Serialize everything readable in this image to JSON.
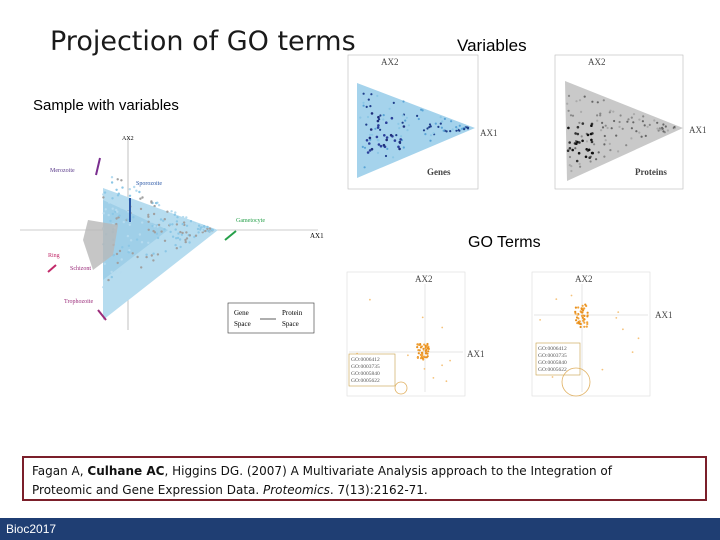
{
  "slide": {
    "title": "Projection of GO terms",
    "variables_label": "Variables",
    "sample_label": "Sample with variables",
    "go_terms_label": "GO Terms",
    "footer": "Bioc2017"
  },
  "main_plot": {
    "ax1": "AX1",
    "ax2": "AX2",
    "labels": {
      "merozoite": "Merozoite",
      "sporozoite": "Sporozoite",
      "gametocyte": "Gametocyte",
      "ring": "Ring",
      "schizont": "Schizont",
      "trophozoite": "Trophozoite"
    },
    "legend": {
      "gene": "Gene",
      "space1": "Space",
      "protein": "Protein",
      "space2": "Space"
    }
  },
  "genes_plot": {
    "ax1": "AX1",
    "ax2": "AX2",
    "name": "Genes"
  },
  "proteins_plot": {
    "ax1": "AX1",
    "ax2": "AX2",
    "name": "Proteins"
  },
  "go_genes_plot": {
    "ax1": "AX1",
    "ax2": "AX2",
    "terms": [
      "GO:0006412",
      "GO:0003735",
      "GO:0005840",
      "GO:0005622"
    ]
  },
  "go_proteins_plot": {
    "ax1": "AX1",
    "ax2": "AX2",
    "terms": [
      "GO:0006412",
      "GO:0003735",
      "GO:0005840",
      "GO:0005622"
    ]
  },
  "citation": {
    "authors_pre": "Fagan A, ",
    "authors_bold": "Culhane AC",
    "authors_post": ", Higgins DG. (2007) A Multivariate Analysis approach to the Integration of",
    "line2_pre": "Proteomic and Gene Expression Data. ",
    "journal": "Proteomics",
    "line2_post": ". 7(13):2162-71."
  },
  "colors": {
    "footer": "#1f3e73",
    "citation_border": "#7b1f2a",
    "gene_points": "#8cc7e6",
    "protein_points": "#a9a9a9",
    "go_points": "#f2a33a"
  }
}
